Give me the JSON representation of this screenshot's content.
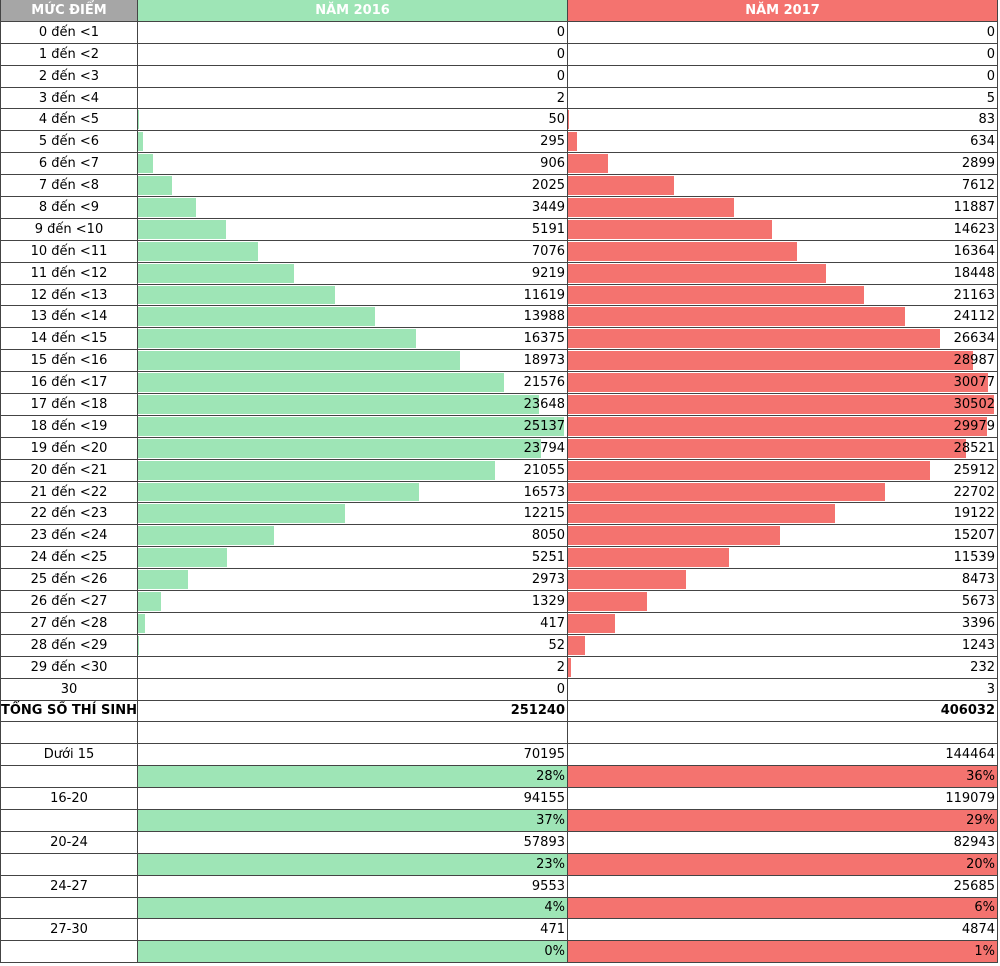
{
  "header": {
    "columns": [
      "MỨC ĐIỂM",
      "NĂM 2016",
      "NĂM 2017"
    ],
    "colors": [
      "#a6a6a6",
      "#9ee5b6",
      "#f4736f"
    ]
  },
  "rows": [
    {
      "label": "0 đến <1",
      "values": [
        0,
        0
      ]
    },
    {
      "label": "1 đến <2",
      "values": [
        0,
        0
      ]
    },
    {
      "label": "2 đến <3",
      "values": [
        0,
        0
      ]
    },
    {
      "label": "3 đến <4",
      "values": [
        2,
        5
      ]
    },
    {
      "label": "4 đến <5",
      "values": [
        50,
        83
      ]
    },
    {
      "label": "5 đến <6",
      "values": [
        295,
        634
      ]
    },
    {
      "label": "6 đến <7",
      "values": [
        906,
        2899
      ]
    },
    {
      "label": "7 đến <8",
      "values": [
        2025,
        7612
      ]
    },
    {
      "label": "8 đến <9",
      "values": [
        3449,
        11887
      ]
    },
    {
      "label": "9 đến <10",
      "values": [
        5191,
        14623
      ]
    },
    {
      "label": "10 đến <11",
      "values": [
        7076,
        16364
      ]
    },
    {
      "label": "11 đến <12",
      "values": [
        9219,
        18448
      ]
    },
    {
      "label": "12 đến <13",
      "values": [
        11619,
        21163
      ]
    },
    {
      "label": "13 đến <14",
      "values": [
        13988,
        24112
      ]
    },
    {
      "label": "14 đến <15",
      "values": [
        16375,
        26634
      ]
    },
    {
      "label": "15 đến <16",
      "values": [
        18973,
        28987
      ]
    },
    {
      "label": "16 đến <17",
      "values": [
        21576,
        30077
      ]
    },
    {
      "label": "17 đến <18",
      "values": [
        23648,
        30502
      ]
    },
    {
      "label": "18 đến <19",
      "values": [
        25137,
        29979
      ]
    },
    {
      "label": "19 đến <20",
      "values": [
        23794,
        28521
      ]
    },
    {
      "label": "20 đến <21",
      "values": [
        21055,
        25912
      ]
    },
    {
      "label": "21 đến <22",
      "values": [
        16573,
        22702
      ]
    },
    {
      "label": "22 đến <23",
      "values": [
        12215,
        19122
      ]
    },
    {
      "label": "23 đến <24",
      "values": [
        8050,
        15207
      ]
    },
    {
      "label": "24 đến <25",
      "values": [
        5251,
        11539
      ]
    },
    {
      "label": "25 đến <26",
      "values": [
        2973,
        8473
      ]
    },
    {
      "label": "26 đến <27",
      "values": [
        1329,
        5673
      ]
    },
    {
      "label": "27 đến <28",
      "values": [
        417,
        3396
      ]
    },
    {
      "label": "28 đến <29",
      "values": [
        52,
        1243
      ]
    },
    {
      "label": "29 đến <30",
      "values": [
        2,
        232
      ]
    },
    {
      "label": "30",
      "values": [
        0,
        3
      ]
    }
  ],
  "total": {
    "label": "TỔNG SỐ THÍ SINH",
    "values": [
      251240,
      406032
    ]
  },
  "summary": [
    {
      "label": "Dưới 15",
      "values": [
        70195,
        144464
      ],
      "percents": [
        "28%",
        "36%"
      ]
    },
    {
      "label": "16-20",
      "values": [
        94155,
        119079
      ],
      "percents": [
        "37%",
        "29%"
      ]
    },
    {
      "label": "20-24",
      "values": [
        57893,
        82943
      ],
      "percents": [
        "23%",
        "20%"
      ]
    },
    {
      "label": "24-27",
      "values": [
        9553,
        25685
      ],
      "percents": [
        "4%",
        "6%"
      ]
    },
    {
      "label": "27-30",
      "values": [
        471,
        4874
      ],
      "percents": [
        "0%",
        "1%"
      ]
    }
  ]
}
